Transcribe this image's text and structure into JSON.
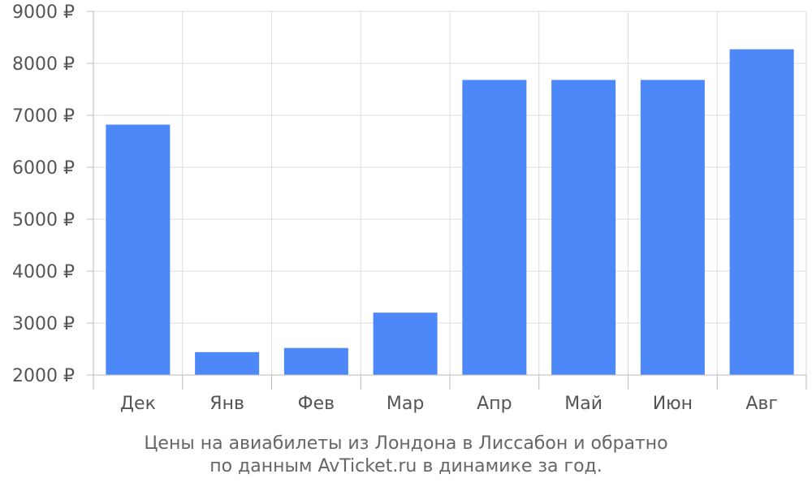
{
  "chart_data": {
    "type": "bar",
    "categories": [
      "Дек",
      "Янв",
      "Фев",
      "Мар",
      "Апр",
      "Май",
      "Июн",
      "Авг"
    ],
    "values": [
      6820,
      2440,
      2520,
      3200,
      7680,
      7680,
      7680,
      8270
    ],
    "ylim": [
      2000,
      9000
    ],
    "yticks": [
      2000,
      3000,
      4000,
      5000,
      6000,
      7000,
      8000,
      9000
    ],
    "ytick_labels": [
      "2000 ₽",
      "3000 ₽",
      "4000 ₽",
      "5000 ₽",
      "6000 ₽",
      "7000 ₽",
      "8000 ₽",
      "9000 ₽"
    ],
    "grid": true,
    "bar_color": "#4d88f9"
  },
  "caption": {
    "line1": "Цены на авиабилеты из Лондона в Лиссабон и обратно",
    "line2": "по данным AvTicket.ru в динамике за год."
  }
}
